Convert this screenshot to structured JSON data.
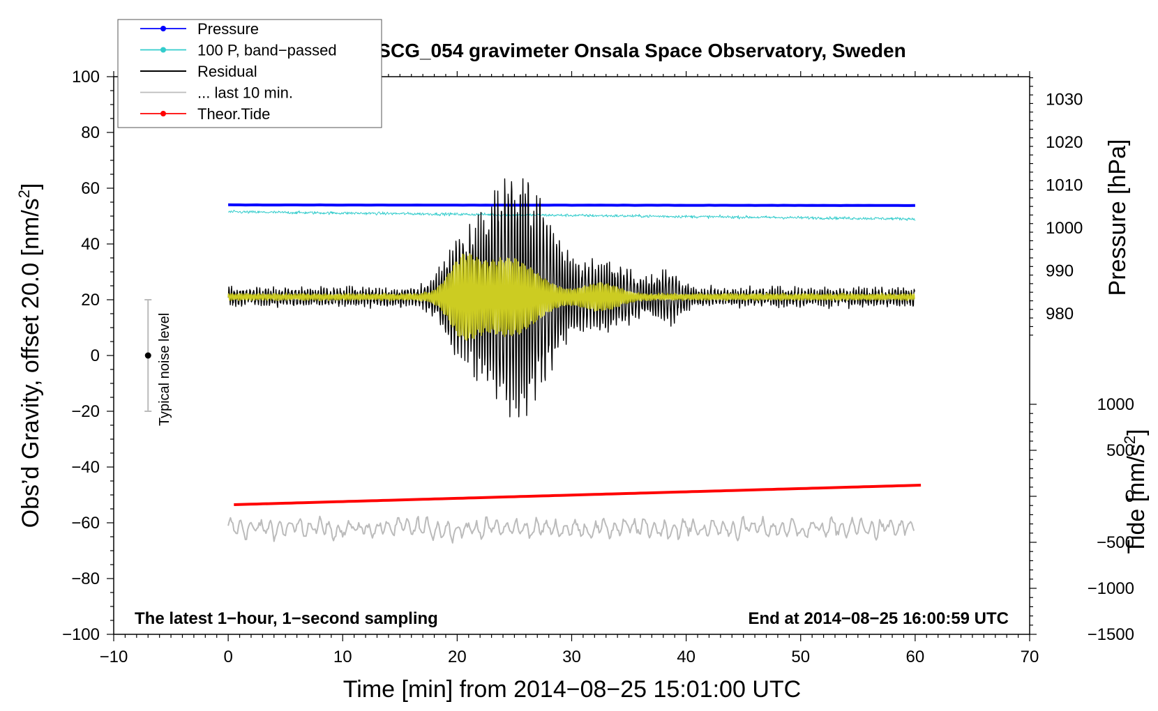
{
  "chart_data": {
    "type": "line",
    "title": "SCG_054 gravimeter Onsala Space Observatory, Sweden",
    "xlabel": "Time [min] from 2014−08−25 15:01:00 UTC",
    "xlim": [
      -10,
      70
    ],
    "x_ticks": [
      -10,
      0,
      10,
      20,
      30,
      40,
      50,
      60,
      70
    ],
    "x_tick_labels": [
      "−10",
      "0",
      "10",
      "20",
      "30",
      "40",
      "50",
      "60",
      "70"
    ],
    "left_axis": {
      "label": "Obs'd Gravity, offset 20.0 [nm/s²]",
      "label_main": "Obs’d Gravity, offset 20.0 [nm/s",
      "label_sup": "2",
      "label_tail": "]",
      "ylim": [
        -100,
        100
      ],
      "ticks": [
        -100,
        -80,
        -60,
        -40,
        -20,
        0,
        20,
        40,
        60,
        80,
        100
      ],
      "tick_labels": [
        "−100",
        "−80",
        "−60",
        "−40",
        "−20",
        "0",
        "20",
        "40",
        "60",
        "80",
        "100"
      ]
    },
    "pressure_axis": {
      "label": "Pressure [hPa]",
      "ticks": [
        980,
        990,
        1000,
        1010,
        1020,
        1030
      ],
      "tick_labels": [
        "980",
        "990",
        "1000",
        "1010",
        "1020",
        "1030"
      ],
      "left_value_at": {
        "value": 980,
        "maps_to_left": 15
      },
      "hpa_per_left_unit": 0.65
    },
    "tide_axis": {
      "label": "Tide [nm/s²]",
      "label_main": "Tide [nm/s",
      "label_sup": "2",
      "label_tail": "]",
      "ticks": [
        -1500,
        -1000,
        -500,
        0,
        500,
        1000
      ],
      "tick_labels": [
        "−1500",
        "−1000",
        "−500",
        "0",
        "500",
        "1000"
      ],
      "maps": {
        "value_a": -1500,
        "left_a": -100,
        "value_b": 1000,
        "left_b": -17.5
      }
    },
    "legend": [
      {
        "label": "Pressure",
        "color": "#0000ff",
        "marker": true
      },
      {
        "label": "100 P, band−passed",
        "color": "#33cccc",
        "marker": true
      },
      {
        "label": "Residual",
        "color": "#000000",
        "marker": false
      },
      {
        "label": "... last 10 min.",
        "color": "#bbbbbb",
        "marker": false
      },
      {
        "label": "Theor.Tide",
        "color": "#ff0000",
        "marker": true
      }
    ],
    "noise_bar": {
      "label": "Typical noise level",
      "x": -7,
      "center": 0,
      "low": -20,
      "high": 20
    },
    "notes": {
      "left": "The latest 1−hour, 1−second sampling",
      "right": "End at 2014−08−25 16:00:59 UTC"
    },
    "series": [
      {
        "name": "Pressure",
        "color": "#0000ff",
        "x_range": [
          0,
          60
        ],
        "start": 54.0,
        "end": 53.8
      },
      {
        "name": "100 P, band-passed",
        "color": "#33cccc",
        "x_range": [
          0,
          60
        ],
        "start": 51.5,
        "end": 49.0
      },
      {
        "name": "Residual",
        "color": "#000000",
        "x_range": [
          0,
          60
        ],
        "baseline": 21,
        "peak_time": 25,
        "peak_max": 71,
        "peak_min": -22
      },
      {
        "name": "Residual (smoothed)",
        "color": "#cccc22",
        "x_range": [
          0,
          60
        ],
        "baseline": 21,
        "peak_time": 24.5
      },
      {
        "name": "... last 10 min.",
        "color": "#bbbbbb",
        "x_range": [
          0,
          60
        ],
        "baseline": -62
      },
      {
        "name": "Theor.Tide",
        "color": "#ff0000",
        "x_range": [
          0.5,
          60.5
        ],
        "start": -53.5,
        "end": -46.5
      }
    ]
  }
}
